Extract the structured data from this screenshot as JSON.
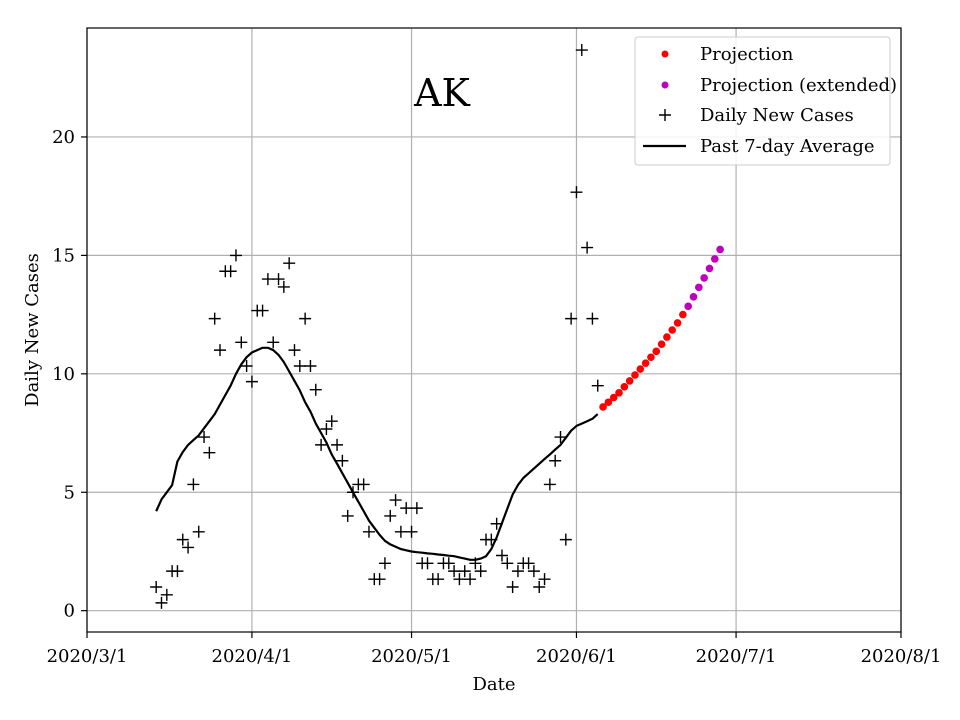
{
  "chart_data": {
    "type": "line",
    "title": "AK",
    "xlabel": "Date",
    "ylabel": "Daily New Cases",
    "x_ticks": [
      "2020/3/1",
      "2020/4/1",
      "2020/5/1",
      "2020/6/1",
      "2020/7/1",
      "2020/8/1"
    ],
    "x_tick_days": [
      0,
      31,
      61,
      92,
      122,
      153
    ],
    "x_unit": "days since 2020/3/1",
    "xlim": [
      0,
      153
    ],
    "ylim": [
      -0.9,
      24.6
    ],
    "y_ticks": [
      0,
      5,
      10,
      15,
      20
    ],
    "grid": true,
    "legend_position": "top-right",
    "colors": {
      "projection": "#ff0000",
      "projection_extended": "#bf00bf",
      "daily": "#000000",
      "average": "#000000",
      "grid": "#b0b0b0"
    },
    "legend": [
      {
        "label": "Projection",
        "marker": "dot",
        "color": "#ff0000"
      },
      {
        "label": "Projection (extended)",
        "marker": "dot",
        "color": "#bf00bf"
      },
      {
        "label": "Daily New Cases",
        "marker": "plus",
        "color": "#000000"
      },
      {
        "label": "Past 7-day Average",
        "marker": "line",
        "color": "#000000"
      }
    ],
    "series": [
      {
        "name": "Daily New Cases",
        "style": "plus",
        "x": [
          13,
          14,
          15,
          16,
          17,
          18,
          19,
          20,
          21,
          22,
          23,
          24,
          25,
          26,
          27,
          28,
          29,
          30,
          31,
          32,
          33,
          34,
          35,
          36,
          37,
          38,
          39,
          40,
          41,
          42,
          43,
          44,
          45,
          46,
          47,
          48,
          49,
          50,
          51,
          52,
          53,
          54,
          55,
          56,
          57,
          58,
          59,
          60,
          61,
          62,
          63,
          64,
          65,
          66,
          67,
          68,
          69,
          70,
          71,
          72,
          73,
          74,
          75,
          76,
          77,
          78,
          79,
          80,
          81,
          82,
          83,
          84,
          85,
          86,
          87,
          88,
          89,
          90,
          91,
          92,
          93,
          94,
          95,
          96
        ],
        "y": [
          1,
          0.33,
          0.67,
          1.67,
          1.67,
          3,
          2.67,
          5.33,
          3.33,
          7.33,
          6.67,
          12.33,
          11,
          14.33,
          14.33,
          15,
          11.33,
          10.33,
          9.67,
          12.67,
          12.67,
          14,
          11.33,
          14,
          13.67,
          14.67,
          11,
          10.33,
          12.33,
          10.33,
          9.33,
          7,
          7.67,
          8,
          7,
          6.33,
          4,
          5,
          5.33,
          5.33,
          3.33,
          1.33,
          1.33,
          2,
          4,
          4.67,
          3.33,
          4.33,
          3.33,
          4.33,
          2,
          2,
          1.33,
          1.33,
          2,
          2,
          1.67,
          1.33,
          1.67,
          1.33,
          2,
          1.67,
          3,
          3,
          3.67,
          2.33,
          2,
          1,
          1.67,
          2,
          2,
          1.67,
          1,
          1.33,
          5.33,
          6.33,
          7.33,
          3,
          12.33,
          17.67,
          23.67,
          15.33,
          12.33,
          9.5
        ]
      },
      {
        "name": "Past 7-day Average",
        "style": "line",
        "x": [
          13,
          14,
          15,
          16,
          17,
          18,
          19,
          20,
          21,
          22,
          23,
          24,
          25,
          26,
          27,
          28,
          29,
          30,
          31,
          32,
          33,
          34,
          35,
          36,
          37,
          38,
          39,
          40,
          41,
          42,
          43,
          44,
          45,
          46,
          47,
          48,
          49,
          50,
          51,
          52,
          53,
          54,
          55,
          56,
          57,
          58,
          59,
          60,
          61,
          62,
          63,
          64,
          65,
          66,
          67,
          68,
          69,
          70,
          71,
          72,
          73,
          74,
          75,
          76,
          77,
          78,
          79,
          80,
          81,
          82,
          83,
          84,
          85,
          86,
          87,
          88,
          89,
          90,
          91,
          92,
          93,
          94,
          95,
          96
        ],
        "y": [
          4.2,
          4.7,
          5.0,
          5.3,
          6.3,
          6.7,
          7.0,
          7.2,
          7.4,
          7.7,
          8.0,
          8.3,
          8.7,
          9.1,
          9.5,
          10.0,
          10.4,
          10.7,
          10.9,
          11.0,
          11.1,
          11.1,
          11.0,
          10.8,
          10.5,
          10.1,
          9.7,
          9.3,
          8.8,
          8.4,
          7.9,
          7.5,
          7.1,
          6.6,
          6.2,
          5.8,
          5.4,
          5.0,
          4.6,
          4.2,
          3.8,
          3.5,
          3.2,
          2.95,
          2.8,
          2.7,
          2.6,
          2.55,
          2.5,
          2.47,
          2.45,
          2.42,
          2.4,
          2.37,
          2.35,
          2.32,
          2.3,
          2.25,
          2.2,
          2.15,
          2.15,
          2.2,
          2.3,
          2.6,
          3.1,
          3.7,
          4.3,
          4.9,
          5.3,
          5.6,
          5.8,
          6.0,
          6.2,
          6.4,
          6.6,
          6.8,
          7.0,
          7.3,
          7.6,
          7.8,
          7.9,
          8.0,
          8.1,
          8.3
        ]
      },
      {
        "name": "Projection",
        "style": "dot",
        "color": "#ff0000",
        "x": [
          97,
          98,
          99,
          100,
          101,
          102,
          103,
          104,
          105,
          106,
          107,
          108,
          109,
          110,
          111,
          112
        ],
        "y": [
          8.6,
          8.8,
          9.0,
          9.2,
          9.45,
          9.7,
          9.95,
          10.2,
          10.45,
          10.7,
          10.95,
          11.25,
          11.55,
          11.85,
          12.15,
          12.5
        ]
      },
      {
        "name": "Projection (extended)",
        "style": "dot",
        "color": "#bf00bf",
        "x": [
          113,
          114,
          115,
          116,
          117,
          118,
          119
        ],
        "y": [
          12.85,
          13.25,
          13.65,
          14.05,
          14.45,
          14.85,
          15.25
        ]
      }
    ]
  }
}
